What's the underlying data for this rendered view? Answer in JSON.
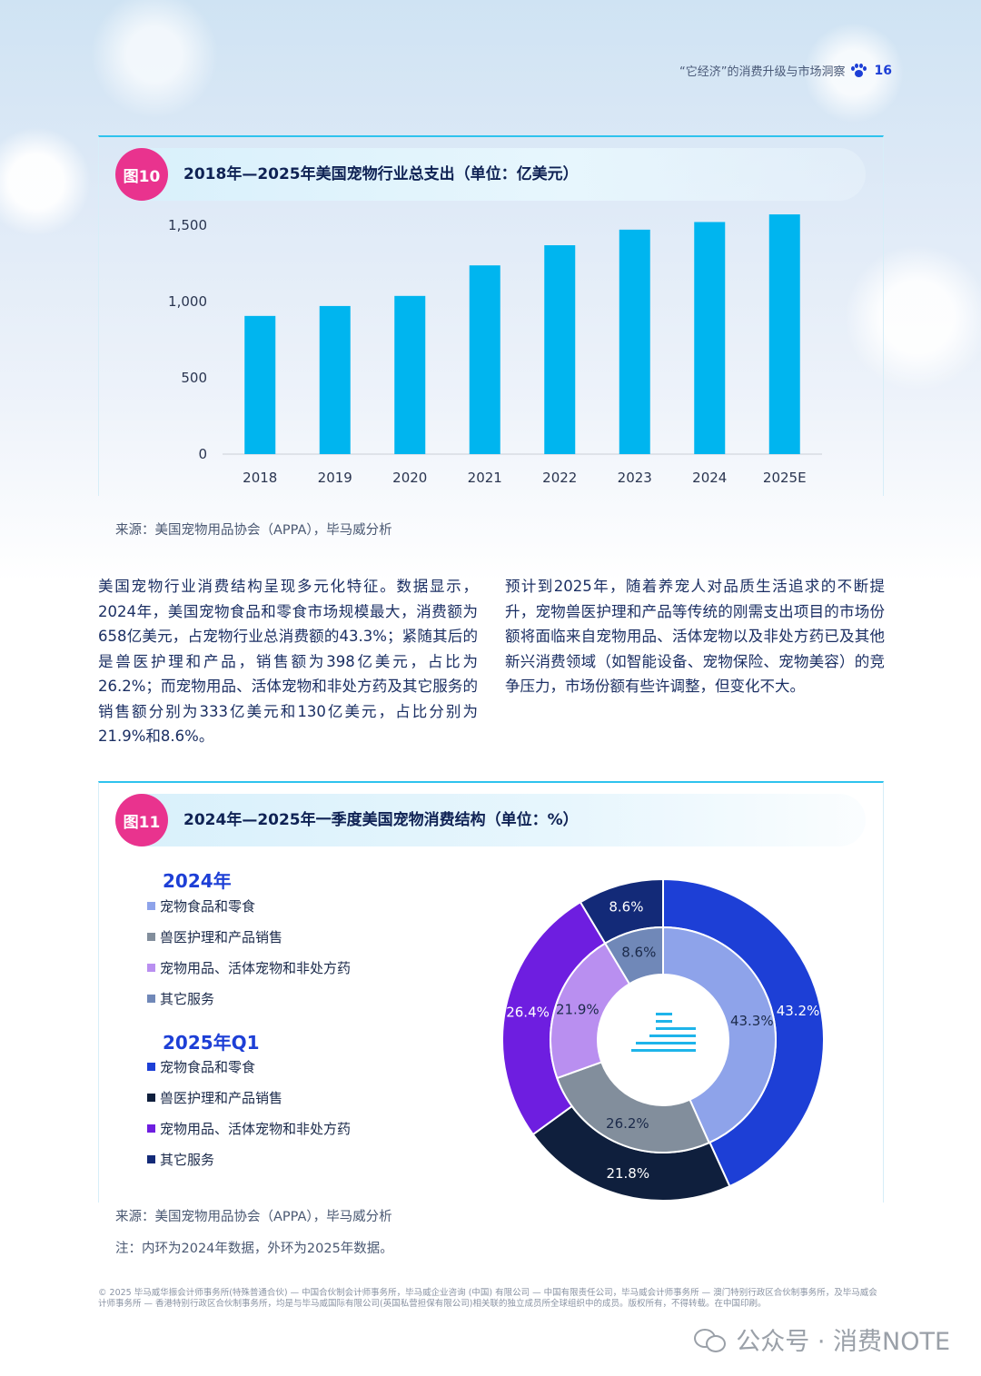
{
  "header": {
    "running_title": "“它经济”的消费升级与市场洞察",
    "page_number": "16"
  },
  "figure10": {
    "badge": "图10",
    "title": "2018年—2025年美国宠物行业总支出（单位：亿美元）",
    "source": "来源：美国宠物用品协会（APPA），毕马威分析",
    "bar_color": "#00b5ef"
  },
  "figure11": {
    "badge": "图11",
    "title": "2024年—2025年一季度美国宠物消费结构（单位：%）",
    "source": "来源：美国宠物用品协会（APPA），毕马威分析",
    "note": "注：内环为2024年数据，外环为2025年数据。",
    "legend_2024_title": "2024年",
    "legend_2024": [
      "宠物食品和零食",
      "兽医护理和产品销售",
      "宠物用品、活体宠物和非处方药",
      "其它服务"
    ],
    "legend_2025_title": "2025年Q1",
    "legend_2025": [
      "宠物食品和零食",
      "兽医护理和产品销售",
      "宠物用品、活体宠物和非处方药",
      "其它服务"
    ]
  },
  "body": {
    "left_paragraph": "美国宠物行业消费结构呈现多元化特征。数据显示，2024年，美国宠物食品和零食市场规模最大，消费额为658亿美元，占宠物行业总消费额的43.3%；紧随其后的是兽医护理和产品，销售额为398亿美元，占比为26.2%；而宠物用品、活体宠物和非处方药及其它服务的销售额分别为333亿美元和130亿美元，占比分别为21.9%和8.6%。",
    "right_paragraph": "预计到2025年，随着养宠人对品质生活追求的不断提升，宠物兽医护理和产品等传统的刚需支出项目的市场份额将面临来自宠物用品、活体宠物以及非处方药已及其他新兴消费领域（如智能设备、宠物保险、宠物美容）的竞争压力，市场份额有些许调整，但变化不大。"
  },
  "footer": {
    "legal": "© 2025 毕马威华振会计师事务所(特殊普通合伙) — 中国合伙制会计师事务所，毕马威企业咨询 (中国) 有限公司 — 中国有限责任公司，毕马威会计师事务所 — 澳门特别行政区合伙制事务所，及毕马威会计师事务所 — 香港特别行政区合伙制事务所，均是与毕马威国际有限公司(英国私营担保有限公司)相关联的独立成员所全球组织中的成员。版权所有，不得转载。在中国印刷。",
    "watermark": "公众号 · 消费NOTE"
  },
  "chart_data": [
    {
      "type": "bar",
      "categories": [
        "2018",
        "2019",
        "2020",
        "2021",
        "2022",
        "2023",
        "2024",
        "2025E"
      ],
      "values": [
        905,
        970,
        1036,
        1236,
        1368,
        1470,
        1520,
        1570
      ],
      "ylim": [
        0,
        1600
      ],
      "yticks": [
        0,
        500,
        1000,
        1500
      ],
      "ytick_labels": [
        "0",
        "500",
        "1,000",
        "1,500"
      ],
      "grid": false
    },
    {
      "type": "pie",
      "inner_ring_2024": {
        "labels": [
          "宠物食品和零食",
          "兽医护理和产品销售",
          "宠物用品、活体宠物和非处方药",
          "其它服务"
        ],
        "values": [
          43.3,
          26.2,
          21.9,
          8.6
        ],
        "value_labels": [
          "43.3%",
          "26.2%",
          "21.9%",
          "8.6%"
        ],
        "colors": [
          "#8ea3ea",
          "#828e9c",
          "#b98ff0",
          "#7088b8"
        ]
      },
      "outer_ring_2025": {
        "labels": [
          "宠物食品和零食",
          "兽医护理和产品销售",
          "宠物用品、活体宠物和非处方药",
          "其它服务"
        ],
        "values": [
          43.2,
          21.8,
          26.4,
          8.6
        ],
        "value_labels": [
          "43.2%",
          "21.8%",
          "26.4%",
          "8.6%"
        ],
        "colors": [
          "#1d3fd6",
          "#0f1f3d",
          "#6e1ee0",
          "#132a78"
        ]
      }
    }
  ]
}
